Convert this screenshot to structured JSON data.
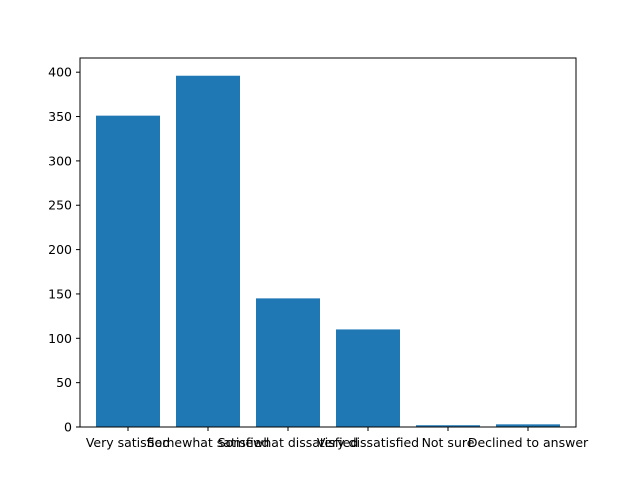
{
  "chart_data": {
    "type": "bar",
    "title": "",
    "xlabel": "",
    "ylabel": "",
    "categories": [
      "Very satisfied",
      "Somewhat satisfied",
      "Somewhat dissatisfied",
      "Very dissatisfied",
      "Not sure",
      "Declined to answer"
    ],
    "values": [
      351,
      396,
      145,
      110,
      2,
      3
    ],
    "ylim": [
      0,
      416
    ],
    "yticks": [
      0,
      50,
      100,
      150,
      200,
      250,
      300,
      350,
      400
    ],
    "grid": false,
    "legend": "none",
    "bar_color": "#1f77b4"
  }
}
